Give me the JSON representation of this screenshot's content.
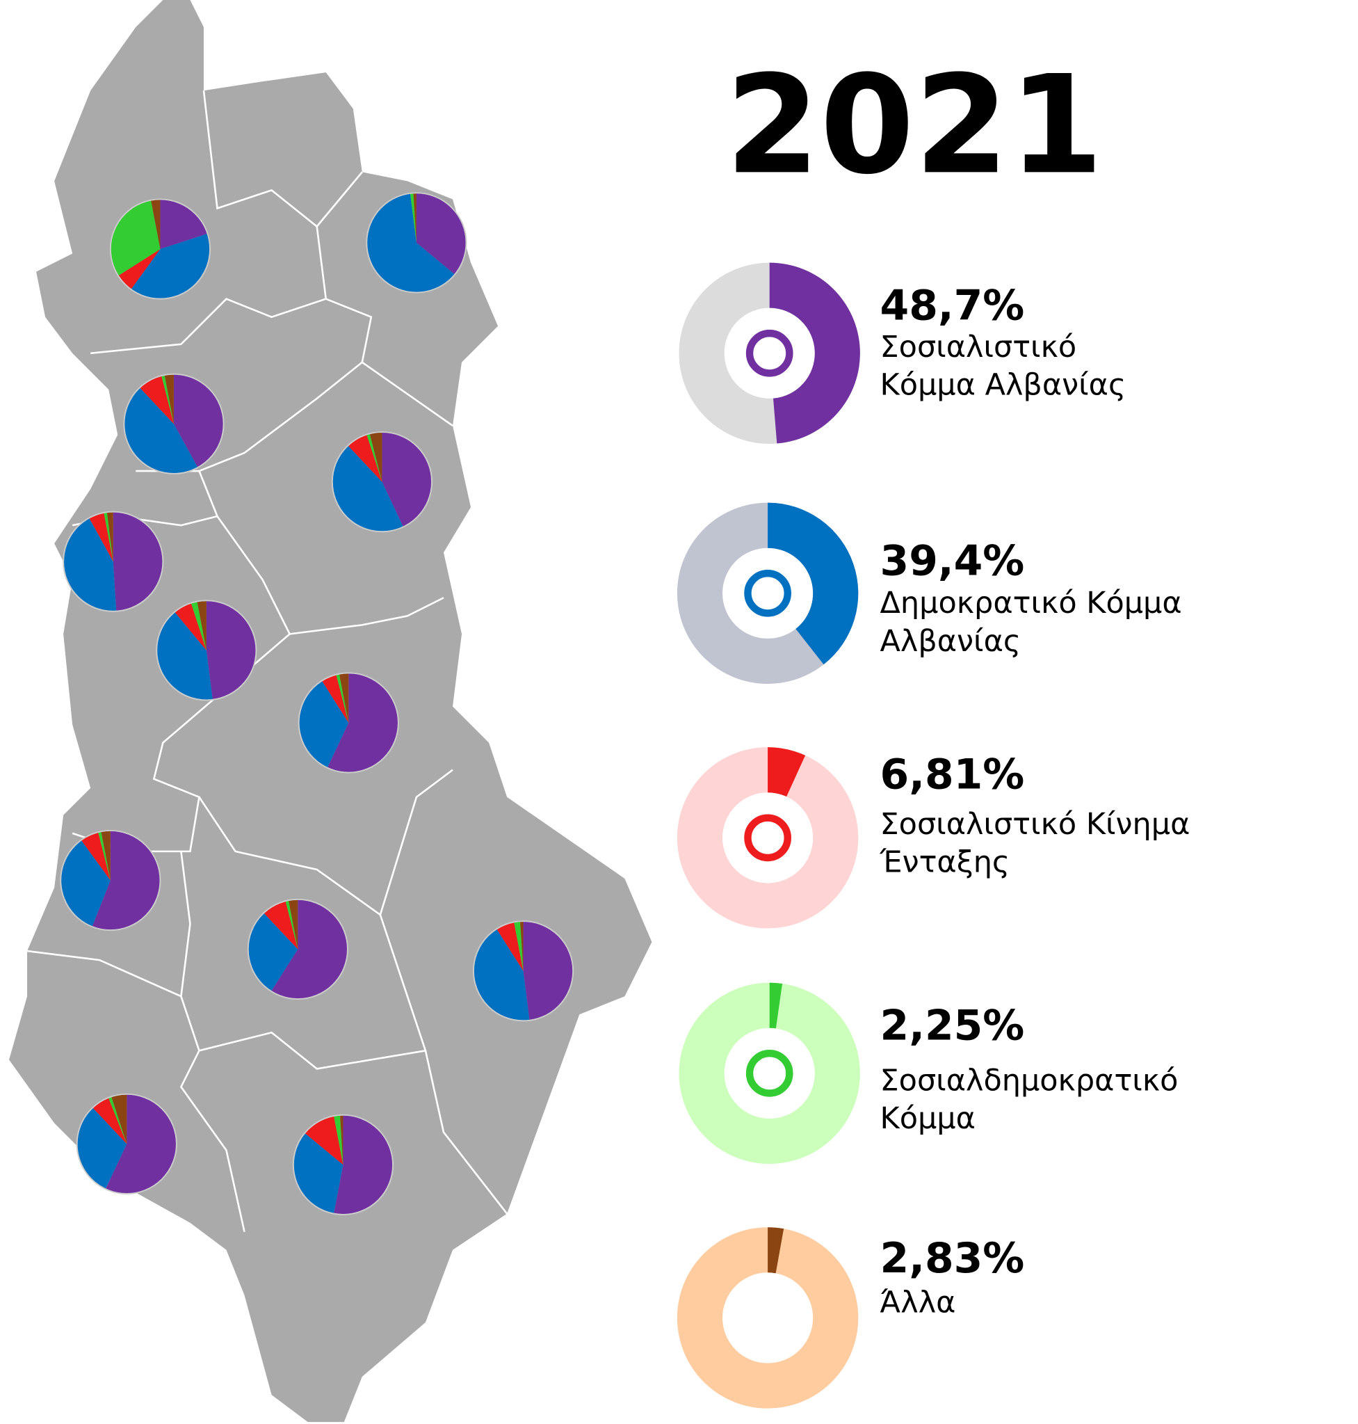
{
  "title": "2021",
  "parties": [
    {
      "value": 48.7,
      "value_label": "48,7%",
      "name_lines": [
        "Σοσιαλιστικό",
        "Κόμμα Αλβανίας"
      ],
      "color": "#7030a0",
      "ring_color": "#dcdcdc"
    },
    {
      "value": 39.4,
      "value_label": "39,4%",
      "name_lines": [
        "Δημοκρατικό Κόμμα",
        "Αλβανίας"
      ],
      "color": "#0070c0",
      "ring_color": "#c0c4d0"
    },
    {
      "value": 6.81,
      "value_label": "6,81%",
      "name_lines": [
        "Σοσιαλιστικό Κίνημα",
        "Ένταξης"
      ],
      "color": "#ee1c1c",
      "ring_color": "#ffd4d4"
    },
    {
      "value": 2.25,
      "value_label": "2,25%",
      "name_lines": [
        "Σοσιαλδημοκρατικό",
        "Κόμμα"
      ],
      "color": "#33cc33",
      "ring_color": "#ccffbb"
    },
    {
      "value": 2.83,
      "value_label": "2,83%",
      "name_lines": [
        "Άλλα"
      ],
      "color": "#8b4513",
      "ring_color": "#ffcca0"
    }
  ],
  "regions": [
    {
      "values": [
        20,
        40,
        6,
        31,
        3
      ]
    },
    {
      "values": [
        36,
        62,
        0,
        1,
        1
      ]
    },
    {
      "values": [
        42,
        46,
        8,
        1,
        3
      ]
    },
    {
      "values": [
        43,
        45,
        7,
        1,
        4
      ]
    },
    {
      "values": [
        49,
        43,
        5,
        1,
        2
      ]
    },
    {
      "values": [
        48,
        41,
        6,
        2,
        3
      ]
    },
    {
      "values": [
        57,
        34,
        5,
        1,
        3
      ]
    },
    {
      "values": [
        56,
        34,
        6,
        1,
        3
      ]
    },
    {
      "values": [
        59,
        29,
        8,
        1,
        3
      ]
    },
    {
      "values": [
        48,
        43,
        6,
        2,
        1
      ]
    },
    {
      "values": [
        57,
        31,
        6,
        1,
        5
      ]
    },
    {
      "values": [
        53,
        33,
        11,
        2,
        1
      ]
    }
  ]
}
